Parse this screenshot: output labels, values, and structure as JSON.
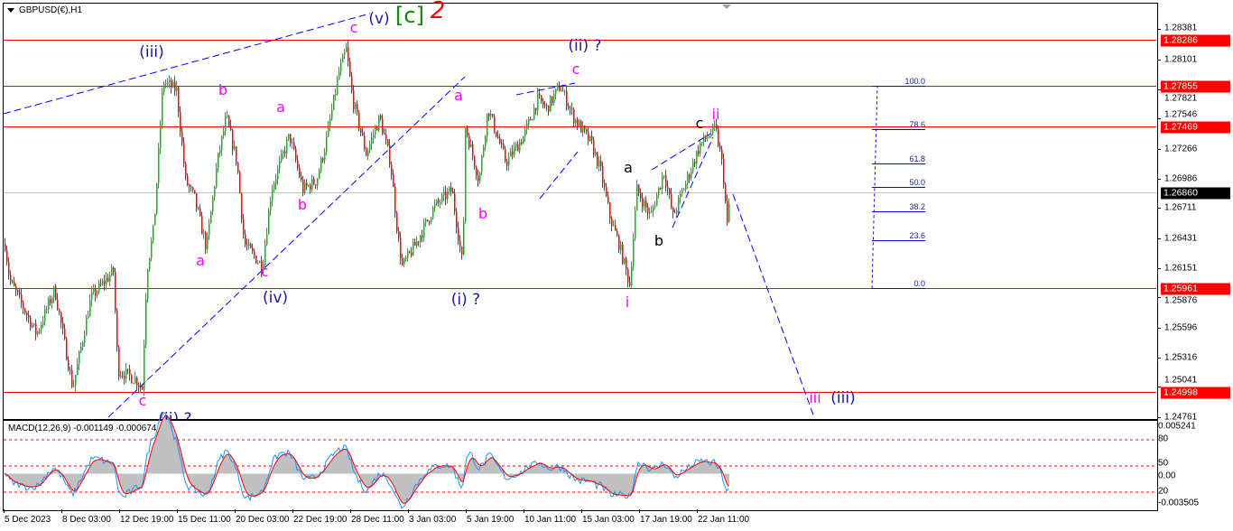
{
  "window": {
    "title": "GBPUSD(€),H1"
  },
  "macd_label": "MACD(12,26,9) -0.001149 -0.000674",
  "colors": {
    "bull": "#00c000",
    "bear": "#ff0000",
    "level_line": "#ff0000",
    "wave_blue": "#1a1aa8",
    "wave_magenta": "#ff00ff",
    "degree_green": "#0a8a0a",
    "macd_hist": "#c0c0c0",
    "macd_signal": "#ff0000",
    "macd_main": "#1e90ff"
  },
  "chart_data": {
    "type": "candlestick",
    "symbol": "GBPUSD",
    "timeframe": "H1",
    "ylim": [
      1.24761,
      1.28381
    ],
    "y_ticks": [
      "1.28381",
      "1.28101",
      "1.27821",
      "1.27546",
      "1.27266",
      "1.26986",
      "1.26711",
      "1.26431",
      "1.26151",
      "1.25876",
      "1.25596",
      "1.25316",
      "1.25041",
      "1.24761"
    ],
    "x_ticks": [
      "5 Dec 2023",
      "8 Dec 03:00",
      "12 Dec 19:00",
      "15 Dec 11:00",
      "20 Dec 03:00",
      "22 Dec 19:00",
      "28 Dec 11:00",
      "3 Jan 03:00",
      "5 Jan 19:00",
      "10 Jan 11:00",
      "15 Jan 03:00",
      "17 Jan 19:00",
      "22 Jan 11:00"
    ],
    "current_price": "1.26860",
    "horizontal_levels": [
      "1.28286",
      "1.27855",
      "1.27469",
      "1.25961",
      "1.24998"
    ],
    "price_path": [
      {
        "bar": 1,
        "price": 1.26377
      },
      {
        "bar": 6,
        "price": 1.2604
      },
      {
        "bar": 16,
        "price": 1.25871
      },
      {
        "bar": 36,
        "price": 1.25534
      },
      {
        "bar": 56,
        "price": 1.25955
      },
      {
        "bar": 76,
        "price": 1.25028
      },
      {
        "bar": 96,
        "price": 1.25871
      },
      {
        "bar": 121,
        "price": 1.26124
      },
      {
        "bar": 126,
        "price": 1.25197
      },
      {
        "bar": 146,
        "price": 1.25112
      },
      {
        "bar": 153,
        "price": 1.25028
      },
      {
        "bar": 158,
        "price": 1.26124
      },
      {
        "bar": 166,
        "price": 1.26546
      },
      {
        "bar": 176,
        "price": 1.27895
      },
      {
        "bar": 191,
        "price": 1.2781
      },
      {
        "bar": 201,
        "price": 1.26967
      },
      {
        "bar": 211,
        "price": 1.26799
      },
      {
        "bar": 224,
        "price": 1.26335
      },
      {
        "bar": 236,
        "price": 1.27136
      },
      {
        "bar": 246,
        "price": 1.27557
      },
      {
        "bar": 258,
        "price": 1.27136
      },
      {
        "bar": 266,
        "price": 1.26377
      },
      {
        "bar": 286,
        "price": 1.26166
      },
      {
        "bar": 296,
        "price": 1.26883
      },
      {
        "bar": 316,
        "price": 1.27388
      },
      {
        "bar": 331,
        "price": 1.26883
      },
      {
        "bar": 346,
        "price": 1.26967
      },
      {
        "bar": 356,
        "price": 1.27304
      },
      {
        "bar": 371,
        "price": 1.27979
      },
      {
        "bar": 379,
        "price": 1.2819
      },
      {
        "bar": 386,
        "price": 1.27726
      },
      {
        "bar": 401,
        "price": 1.2722
      },
      {
        "bar": 416,
        "price": 1.27557
      },
      {
        "bar": 428,
        "price": 1.27136
      },
      {
        "bar": 436,
        "price": 1.26461
      },
      {
        "bar": 441,
        "price": 1.26166
      },
      {
        "bar": 456,
        "price": 1.26377
      },
      {
        "bar": 476,
        "price": 1.26714
      },
      {
        "bar": 496,
        "price": 1.26883
      },
      {
        "bar": 508,
        "price": 1.26166
      },
      {
        "bar": 511,
        "price": 1.27473
      },
      {
        "bar": 526,
        "price": 1.26967
      },
      {
        "bar": 536,
        "price": 1.27642
      },
      {
        "bar": 556,
        "price": 1.27136
      },
      {
        "bar": 576,
        "price": 1.27388
      },
      {
        "bar": 591,
        "price": 1.27726
      },
      {
        "bar": 601,
        "price": 1.27642
      },
      {
        "bar": 616,
        "price": 1.27852
      },
      {
        "bar": 631,
        "price": 1.27557
      },
      {
        "bar": 651,
        "price": 1.27304
      },
      {
        "bar": 661,
        "price": 1.27051
      },
      {
        "bar": 671,
        "price": 1.2663
      },
      {
        "bar": 681,
        "price": 1.26377
      },
      {
        "bar": 693,
        "price": 1.25998
      },
      {
        "bar": 701,
        "price": 1.26883
      },
      {
        "bar": 716,
        "price": 1.2663
      },
      {
        "bar": 731,
        "price": 1.27051
      },
      {
        "bar": 741,
        "price": 1.2663
      },
      {
        "bar": 756,
        "price": 1.26967
      },
      {
        "bar": 771,
        "price": 1.27304
      },
      {
        "bar": 788,
        "price": 1.27456
      },
      {
        "bar": 796,
        "price": 1.27093
      },
      {
        "bar": 801,
        "price": 1.26546
      },
      {
        "bar": 804,
        "price": 1.2684
      }
    ],
    "macd": {
      "params": "12,26,9",
      "main": -0.001149,
      "signal": -0.000674,
      "ylim": [
        -0.003505,
        0.005241
      ],
      "levels": [
        "80",
        "50",
        "20"
      ],
      "zero_label": "0.00",
      "max_label": "0.005241",
      "min_label": "-0.003505"
    },
    "fibonacci": {
      "levels": [
        "100.0",
        "78.6",
        "61.8",
        "50.0",
        "38.2",
        "23.6",
        "0.0"
      ],
      "high": 1.27855,
      "low": 1.25961
    }
  },
  "wave_labels": {
    "iii_top": "(iii)",
    "v_top": "(v)",
    "c_bracket": "[c]",
    "two": "2",
    "c_top": "c",
    "b1": "b",
    "a1": "a",
    "b2": "b",
    "a2": "a",
    "c2": "c",
    "iv": "(iv)",
    "a3": "a",
    "b3": "b",
    "i_q": "(i) ?",
    "ii_q": "(ii) ?",
    "c3": "c",
    "a_blk": "a",
    "b_blk": "b",
    "c_blk": "c",
    "ii_small": "ii",
    "i_small": "i",
    "iii_small": "iii",
    "iii_proj": "(iii)",
    "c_low": "c",
    "ii_low": "(ii) ?"
  }
}
